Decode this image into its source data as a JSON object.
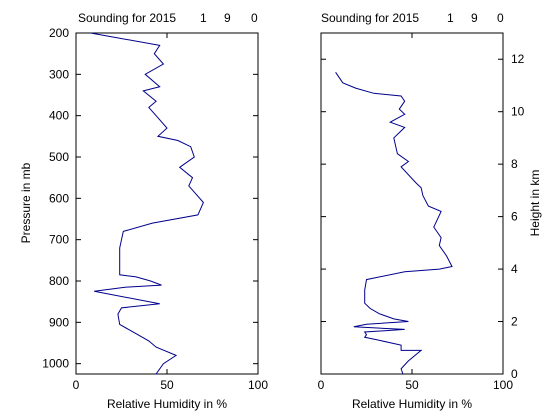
{
  "chart_data": [
    {
      "type": "line",
      "title": "Sounding for 2015",
      "title_fields": [
        "1",
        "9",
        "0"
      ],
      "xlabel": "Relative Humidity in %",
      "ylabel": "Pressure in mb",
      "xlim": [
        0,
        100
      ],
      "ylim": [
        1025,
        200
      ],
      "xticks": [
        0,
        50,
        100
      ],
      "yticks": [
        200,
        300,
        400,
        500,
        600,
        700,
        800,
        900,
        1000
      ],
      "y_scale": "linear-reversed",
      "grid": false,
      "color": "#00008b",
      "series": [
        {
          "x": [
            8,
            46,
            43,
            48,
            38,
            46,
            37,
            44,
            40,
            45,
            50,
            45,
            56,
            63,
            65,
            57,
            64,
            62,
            66,
            70,
            67,
            42,
            26,
            25,
            24,
            24,
            24,
            24,
            24,
            33,
            41,
            47,
            27,
            10,
            46,
            25,
            23,
            24,
            30,
            40,
            44,
            55,
            48,
            44,
            45,
            44,
            45
          ],
          "y": [
            200,
            230,
            250,
            275,
            300,
            330,
            340,
            365,
            380,
            405,
            430,
            450,
            460,
            475,
            500,
            525,
            550,
            570,
            590,
            610,
            640,
            660,
            680,
            700,
            720,
            740,
            760,
            780,
            785,
            790,
            800,
            810,
            815,
            825,
            855,
            865,
            880,
            905,
            920,
            945,
            960,
            980,
            1000,
            1025,
            1025,
            1025,
            1025
          ]
        }
      ]
    },
    {
      "type": "line",
      "title": "Sounding for 2015",
      "title_fields": [
        "1",
        "9",
        "0"
      ],
      "xlabel": "Relative Humidity in %",
      "ylabel": "Height in km",
      "xlim": [
        0,
        100
      ],
      "ylim": [
        0,
        13
      ],
      "xticks": [
        0,
        50,
        100
      ],
      "yticks": [
        0,
        2,
        4,
        6,
        8,
        10,
        12
      ],
      "grid": false,
      "color": "#00008b",
      "series": [
        {
          "x": [
            8,
            12,
            19,
            29,
            44,
            46,
            43,
            46,
            38,
            46,
            40,
            41,
            42,
            48,
            44,
            52,
            55,
            56,
            59,
            66,
            64,
            62,
            66,
            65,
            69,
            72,
            65,
            46,
            25,
            24,
            24,
            24,
            27,
            32,
            40,
            48,
            25,
            18,
            46,
            24,
            25,
            24,
            31,
            44,
            44,
            55,
            48,
            44,
            45
          ],
          "y": [
            11.5,
            11.1,
            10.9,
            10.7,
            10.6,
            10.4,
            10.1,
            9.9,
            9.6,
            9.4,
            9.0,
            8.7,
            8.4,
            8.1,
            7.9,
            7.3,
            7.1,
            6.8,
            6.4,
            6.2,
            5.9,
            5.6,
            5.2,
            4.9,
            4.5,
            4.1,
            4.0,
            3.9,
            3.6,
            3.2,
            3.0,
            2.7,
            2.5,
            2.3,
            2.1,
            2.0,
            1.9,
            1.8,
            1.7,
            1.6,
            1.5,
            1.4,
            1.3,
            1.1,
            0.9,
            0.9,
            0.5,
            0.2,
            0.0
          ]
        }
      ]
    }
  ]
}
